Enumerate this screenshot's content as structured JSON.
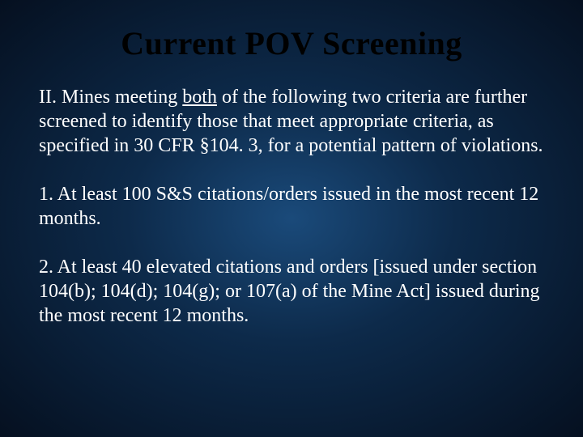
{
  "slide": {
    "title": "Current POV Screening",
    "mainParagraph": {
      "prefix": "II. Mines meeting ",
      "underlined": "both",
      "suffix": " of the following two criteria are further screened to identify those that meet appropriate criteria, as specified in 30 CFR §104. 3, for a potential pattern of violations."
    },
    "criterion1": "1. At least 100 S&S citations/orders issued in the most recent 12 months.",
    "criterion2": "2. At least 40 elevated citations and orders [issued under section 104(b); 104(d); 104(g); or 107(a) of the Mine Act] issued during the most recent 12 months."
  },
  "style": {
    "background_gradient_center": "#1a4a7a",
    "background_gradient_mid": "#0d2a4a",
    "background_gradient_outer": "#051020",
    "title_color": "#000000",
    "body_color": "#ffffff",
    "title_fontsize": 40,
    "body_fontsize": 24,
    "font_family": "Garamond"
  }
}
